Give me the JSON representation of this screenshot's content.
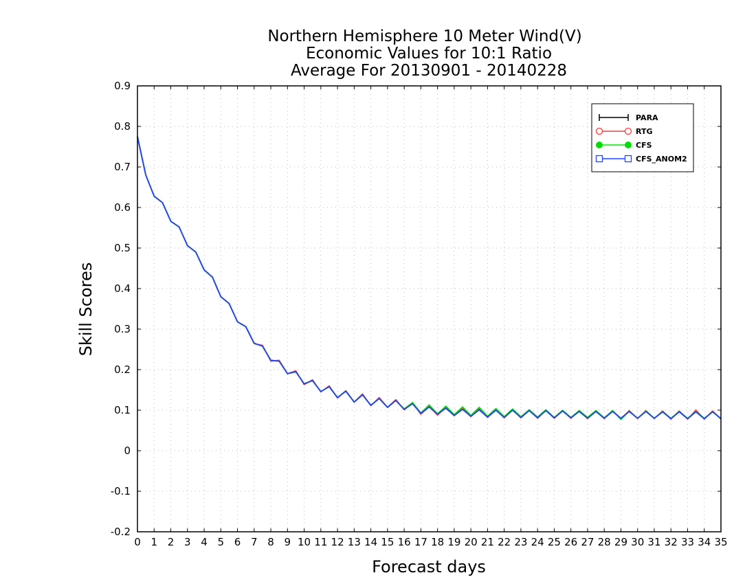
{
  "chart_data": {
    "type": "line",
    "title_lines": [
      "Northern Hemisphere 10 Meter Wind(V)",
      "Economic Values for 10:1 Ratio",
      "Average For 20130901 - 20140228"
    ],
    "xlabel": "Forecast days",
    "ylabel": "Skill Scores",
    "xlim": [
      0,
      35
    ],
    "ylim": [
      -0.2,
      0.9
    ],
    "x_ticks": [
      0,
      1,
      2,
      3,
      4,
      5,
      6,
      7,
      8,
      9,
      10,
      11,
      12,
      13,
      14,
      15,
      16,
      17,
      18,
      19,
      20,
      21,
      22,
      23,
      24,
      25,
      26,
      27,
      28,
      29,
      30,
      31,
      32,
      33,
      34,
      35
    ],
    "y_ticks": [
      -0.2,
      -0.1,
      0,
      0.1,
      0.2,
      0.3,
      0.4,
      0.5,
      0.6,
      0.7,
      0.8,
      0.9
    ],
    "grid": true,
    "legend_position": "top-right",
    "x": [
      0,
      0.5,
      1,
      1.5,
      2,
      2.5,
      3,
      3.5,
      4,
      4.5,
      5,
      5.5,
      6,
      6.5,
      7,
      7.5,
      8,
      8.5,
      9,
      9.5,
      10,
      10.5,
      11,
      11.5,
      12,
      12.5,
      13,
      13.5,
      14,
      14.5,
      15,
      15.5,
      16,
      16.5,
      17,
      17.5,
      18,
      18.5,
      19,
      19.5,
      20,
      20.5,
      21,
      21.5,
      22,
      22.5,
      23,
      23.5,
      24,
      24.5,
      25,
      25.5,
      26,
      26.5,
      27,
      27.5,
      28,
      28.5,
      29,
      29.5,
      30,
      30.5,
      31,
      31.5,
      32,
      32.5,
      33,
      33.5,
      34,
      34.5,
      35
    ],
    "series": [
      {
        "name": "PARA",
        "color": "#000000",
        "marker": "plus",
        "values": [
          0.775,
          0.68,
          0.628,
          0.612,
          0.566,
          0.552,
          0.506,
          0.49,
          0.446,
          0.428,
          0.38,
          0.363,
          0.318,
          0.306,
          0.265,
          0.258,
          0.223,
          0.221,
          0.19,
          0.195,
          0.165,
          0.173,
          0.146,
          0.158,
          0.131,
          0.147,
          0.12,
          0.138,
          0.112,
          0.129,
          0.107,
          0.124,
          0.102,
          0.116,
          0.092,
          0.108,
          0.09,
          0.105,
          0.087,
          0.102,
          0.085,
          0.101,
          0.083,
          0.1,
          0.082,
          0.1,
          0.082,
          0.099,
          0.081,
          0.099,
          0.081,
          0.098,
          0.081,
          0.097,
          0.08,
          0.097,
          0.08,
          0.097,
          0.08,
          0.097,
          0.08,
          0.097,
          0.08,
          0.096,
          0.079,
          0.096,
          0.079,
          0.096,
          0.079,
          0.096,
          0.079
        ]
      },
      {
        "name": "RTG",
        "color": "#ff3333",
        "marker": "open-circle",
        "values": [
          0.775,
          0.68,
          0.628,
          0.612,
          0.566,
          0.552,
          0.506,
          0.49,
          0.446,
          0.428,
          0.38,
          0.363,
          0.318,
          0.306,
          0.264,
          0.26,
          0.221,
          0.223,
          0.19,
          0.197,
          0.163,
          0.175,
          0.145,
          0.16,
          0.13,
          0.148,
          0.12,
          0.14,
          0.111,
          0.131,
          0.107,
          0.126,
          0.101,
          0.118,
          0.09,
          0.109,
          0.088,
          0.107,
          0.086,
          0.104,
          0.084,
          0.103,
          0.082,
          0.102,
          0.081,
          0.101,
          0.081,
          0.101,
          0.08,
          0.1,
          0.08,
          0.099,
          0.08,
          0.099,
          0.079,
          0.099,
          0.079,
          0.099,
          0.079,
          0.099,
          0.079,
          0.099,
          0.079,
          0.098,
          0.078,
          0.098,
          0.078,
          0.1,
          0.078,
          0.098,
          0.078
        ]
      },
      {
        "name": "CFS",
        "color": "#00dd00",
        "marker": "filled-circle",
        "values": [
          0.775,
          0.68,
          0.628,
          0.612,
          0.566,
          0.552,
          0.506,
          0.49,
          0.446,
          0.428,
          0.38,
          0.363,
          0.318,
          0.306,
          0.265,
          0.258,
          0.223,
          0.221,
          0.19,
          0.195,
          0.165,
          0.173,
          0.146,
          0.158,
          0.131,
          0.147,
          0.12,
          0.138,
          0.112,
          0.129,
          0.107,
          0.124,
          0.103,
          0.119,
          0.093,
          0.113,
          0.091,
          0.11,
          0.089,
          0.108,
          0.087,
          0.107,
          0.085,
          0.104,
          0.084,
          0.103,
          0.084,
          0.101,
          0.083,
          0.101,
          0.082,
          0.1,
          0.082,
          0.099,
          0.082,
          0.099,
          0.081,
          0.099,
          0.077,
          0.098,
          0.08,
          0.098,
          0.08,
          0.097,
          0.08,
          0.097,
          0.08,
          0.097,
          0.08,
          0.096,
          0.08
        ]
      },
      {
        "name": "CFS_ANOM2",
        "color": "#2244ff",
        "marker": "open-square",
        "values": [
          0.775,
          0.68,
          0.628,
          0.612,
          0.566,
          0.552,
          0.506,
          0.49,
          0.446,
          0.428,
          0.38,
          0.363,
          0.318,
          0.306,
          0.265,
          0.258,
          0.223,
          0.221,
          0.19,
          0.195,
          0.165,
          0.173,
          0.146,
          0.158,
          0.131,
          0.147,
          0.12,
          0.138,
          0.112,
          0.129,
          0.107,
          0.124,
          0.102,
          0.116,
          0.092,
          0.108,
          0.09,
          0.105,
          0.087,
          0.102,
          0.085,
          0.101,
          0.083,
          0.1,
          0.082,
          0.1,
          0.082,
          0.099,
          0.081,
          0.099,
          0.081,
          0.098,
          0.081,
          0.097,
          0.08,
          0.097,
          0.08,
          0.097,
          0.08,
          0.097,
          0.08,
          0.097,
          0.08,
          0.096,
          0.079,
          0.096,
          0.079,
          0.096,
          0.079,
          0.096,
          0.079
        ]
      }
    ]
  }
}
